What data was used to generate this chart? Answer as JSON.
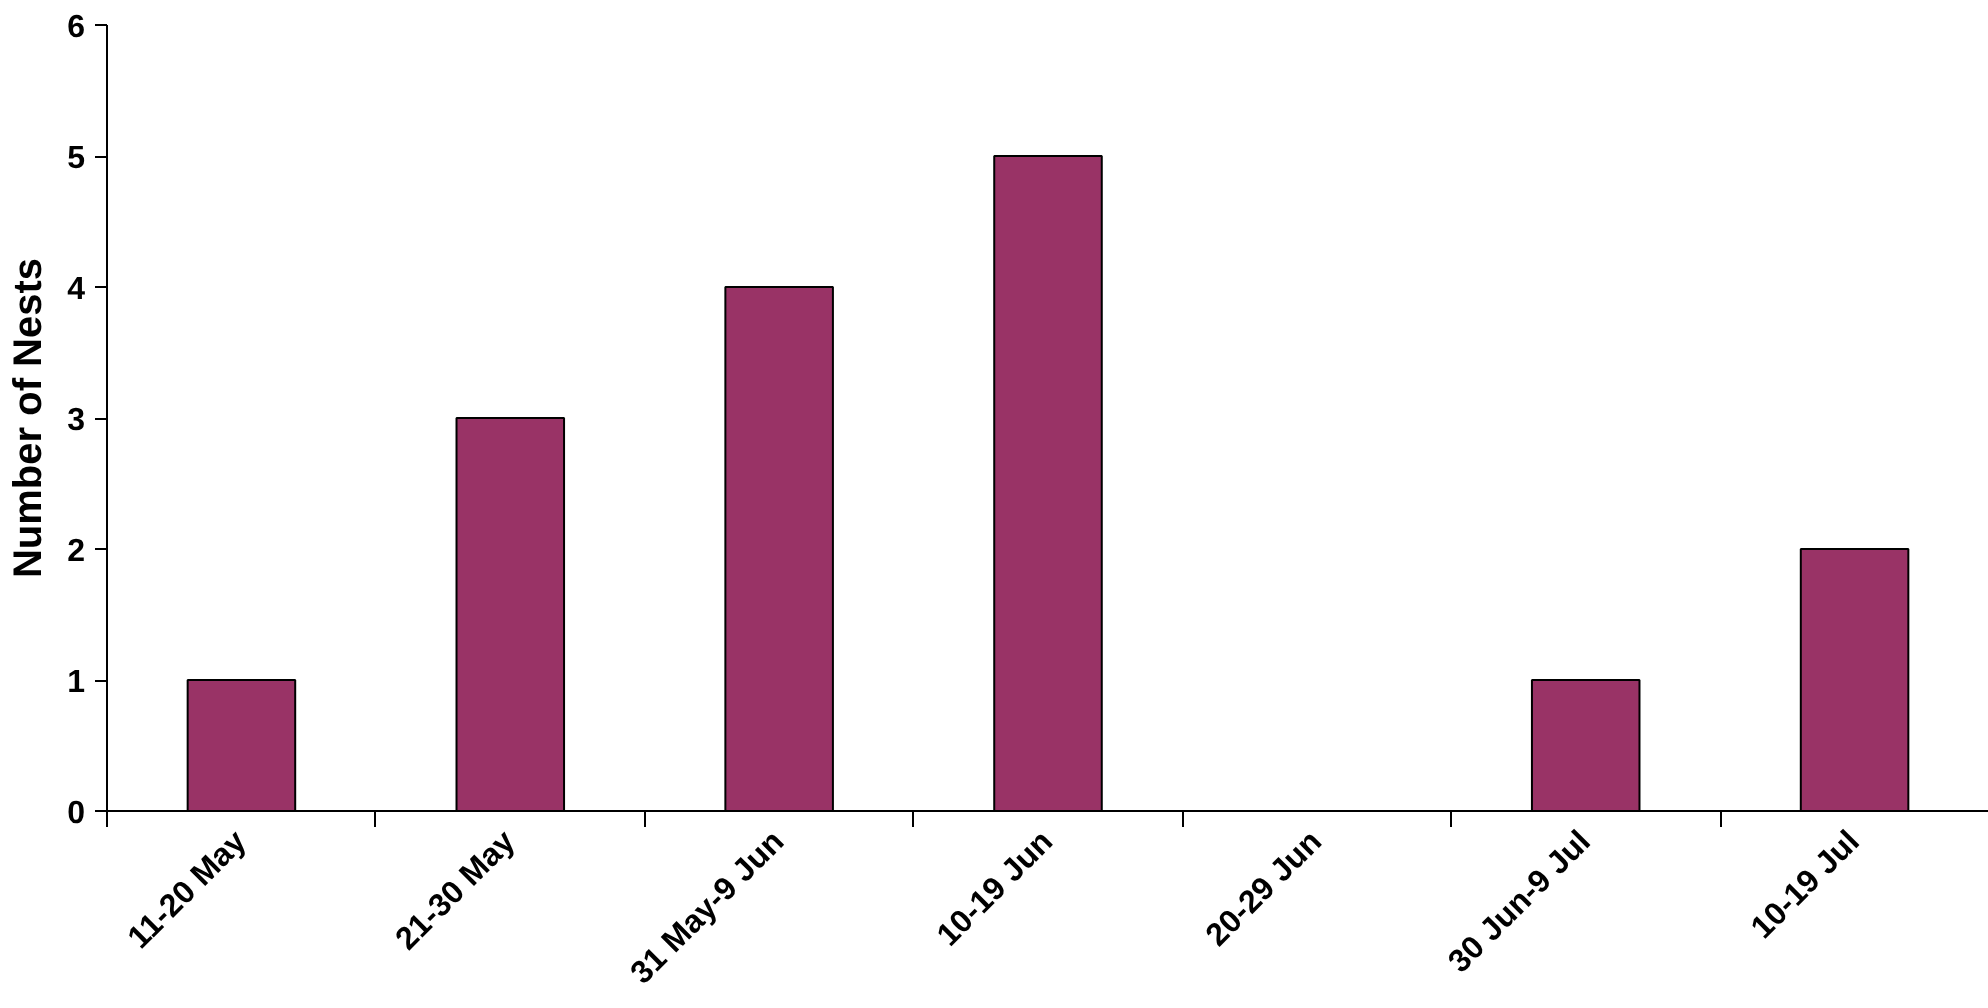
{
  "chart_data": {
    "type": "bar",
    "ylabel": "Number of Nests",
    "categories": [
      "11-20 May",
      "21-30 May",
      "31 May-9 Jun",
      "10-19 Jun",
      "20-29 Jun",
      "30 Jun-9 Jul",
      "10-19 Jul"
    ],
    "values": [
      1,
      3,
      4,
      5,
      0,
      1,
      2
    ],
    "color": "#993366",
    "ylim": [
      0,
      6
    ],
    "yticks": [
      0,
      1,
      2,
      3,
      4,
      5,
      6
    ],
    "grid": false
  }
}
